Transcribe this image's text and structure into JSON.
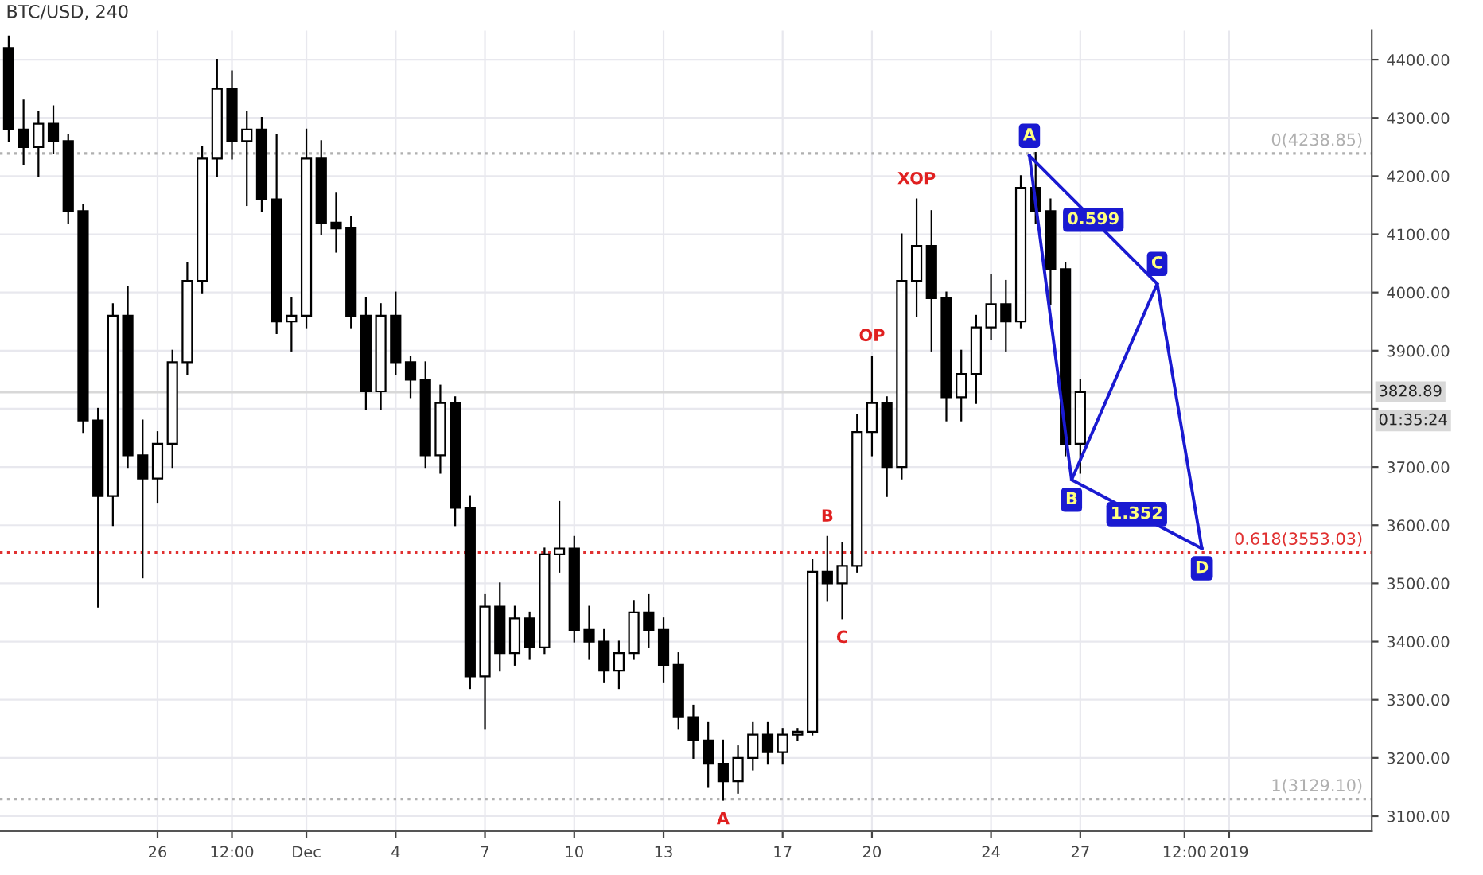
{
  "chart_data": {
    "type": "candlestick",
    "title": "BTC/USD, 240",
    "x": [
      "2018-11-21T00:00",
      "2018-11-21T12:00",
      "2018-11-22T00:00",
      "2018-11-22T12:00",
      "2018-11-23T00:00",
      "2018-11-23T12:00",
      "2018-11-24T00:00",
      "2018-11-24T12:00",
      "2018-11-25T00:00",
      "2018-11-25T12:00",
      "2018-11-26T00:00",
      "2018-11-26T12:00",
      "2018-11-27T00:00",
      "2018-11-27T12:00",
      "2018-11-28T00:00",
      "2018-11-28T12:00",
      "2018-11-29T00:00",
      "2018-11-29T12:00",
      "2018-11-30T00:00",
      "2018-11-30T12:00",
      "2018-12-01T00:00",
      "2018-12-01T12:00",
      "2018-12-02T00:00",
      "2018-12-02T12:00",
      "2018-12-03T00:00",
      "2018-12-03T12:00",
      "2018-12-04T00:00",
      "2018-12-04T12:00",
      "2018-12-05T00:00",
      "2018-12-05T12:00",
      "2018-12-06T00:00",
      "2018-12-06T12:00",
      "2018-12-07T00:00",
      "2018-12-07T12:00",
      "2018-12-08T00:00",
      "2018-12-08T12:00",
      "2018-12-09T00:00",
      "2018-12-09T12:00",
      "2018-12-10T00:00",
      "2018-12-10T12:00",
      "2018-12-11T00:00",
      "2018-12-11T12:00",
      "2018-12-12T00:00",
      "2018-12-12T12:00",
      "2018-12-13T00:00",
      "2018-12-13T12:00",
      "2018-12-14T00:00",
      "2018-12-14T12:00",
      "2018-12-15T00:00",
      "2018-12-15T12:00",
      "2018-12-16T00:00",
      "2018-12-16T12:00",
      "2018-12-17T00:00",
      "2018-12-17T12:00",
      "2018-12-18T00:00",
      "2018-12-18T12:00",
      "2018-12-19T00:00",
      "2018-12-19T12:00",
      "2018-12-20T00:00",
      "2018-12-20T12:00",
      "2018-12-21T00:00",
      "2018-12-21T12:00",
      "2018-12-22T00:00",
      "2018-12-22T12:00",
      "2018-12-23T00:00",
      "2018-12-23T12:00",
      "2018-12-24T00:00",
      "2018-12-24T12:00",
      "2018-12-25T00:00",
      "2018-12-25T12:00",
      "2018-12-26T00:00",
      "2018-12-26T12:00",
      "2018-12-27T00:00"
    ],
    "ohlc": [
      [
        4420,
        4440,
        4260,
        4280
      ],
      [
        4280,
        4330,
        4220,
        4250
      ],
      [
        4250,
        4310,
        4200,
        4290
      ],
      [
        4290,
        4320,
        4240,
        4260
      ],
      [
        4260,
        4270,
        4120,
        4140
      ],
      [
        4140,
        4150,
        3760,
        3780
      ],
      [
        3780,
        3800,
        3460,
        3650
      ],
      [
        3650,
        3980,
        3600,
        3960
      ],
      [
        3960,
        4010,
        3700,
        3720
      ],
      [
        3720,
        3780,
        3510,
        3680
      ],
      [
        3680,
        3760,
        3640,
        3740
      ],
      [
        3740,
        3900,
        3700,
        3880
      ],
      [
        3880,
        4050,
        3860,
        4020
      ],
      [
        4020,
        4250,
        4000,
        4230
      ],
      [
        4230,
        4400,
        4200,
        4350
      ],
      [
        4350,
        4380,
        4230,
        4260
      ],
      [
        4260,
        4310,
        4150,
        4280
      ],
      [
        4280,
        4300,
        4140,
        4160
      ],
      [
        4160,
        4270,
        3930,
        3950
      ],
      [
        3950,
        3990,
        3900,
        3960
      ],
      [
        3960,
        4280,
        3940,
        4230
      ],
      [
        4230,
        4260,
        4100,
        4120
      ],
      [
        4120,
        4170,
        4070,
        4110
      ],
      [
        4110,
        4130,
        3940,
        3960
      ],
      [
        3960,
        3990,
        3800,
        3830
      ],
      [
        3830,
        3980,
        3800,
        3960
      ],
      [
        3960,
        4000,
        3860,
        3880
      ],
      [
        3880,
        3890,
        3820,
        3850
      ],
      [
        3850,
        3880,
        3700,
        3720
      ],
      [
        3720,
        3840,
        3690,
        3810
      ],
      [
        3810,
        3820,
        3600,
        3630
      ],
      [
        3630,
        3650,
        3320,
        3340
      ],
      [
        3340,
        3480,
        3250,
        3460
      ],
      [
        3460,
        3500,
        3350,
        3380
      ],
      [
        3380,
        3460,
        3360,
        3440
      ],
      [
        3440,
        3450,
        3370,
        3390
      ],
      [
        3390,
        3560,
        3380,
        3550
      ],
      [
        3550,
        3640,
        3520,
        3560
      ],
      [
        3560,
        3580,
        3400,
        3420
      ],
      [
        3420,
        3460,
        3370,
        3400
      ],
      [
        3400,
        3420,
        3330,
        3350
      ],
      [
        3350,
        3400,
        3320,
        3380
      ],
      [
        3380,
        3470,
        3370,
        3450
      ],
      [
        3450,
        3480,
        3390,
        3420
      ],
      [
        3420,
        3440,
        3330,
        3360
      ],
      [
        3360,
        3380,
        3250,
        3270
      ],
      [
        3270,
        3290,
        3200,
        3230
      ],
      [
        3230,
        3260,
        3150,
        3190
      ],
      [
        3190,
        3230,
        3128,
        3160
      ],
      [
        3160,
        3220,
        3140,
        3200
      ],
      [
        3200,
        3260,
        3180,
        3240
      ],
      [
        3240,
        3260,
        3190,
        3210
      ],
      [
        3210,
        3250,
        3190,
        3240
      ],
      [
        3240,
        3250,
        3230,
        3245
      ],
      [
        3245,
        3540,
        3240,
        3520
      ],
      [
        3520,
        3580,
        3470,
        3500
      ],
      [
        3500,
        3570,
        3440,
        3530
      ],
      [
        3530,
        3790,
        3520,
        3760
      ],
      [
        3760,
        3890,
        3720,
        3810
      ],
      [
        3810,
        3820,
        3650,
        3700
      ],
      [
        3700,
        4100,
        3680,
        4020
      ],
      [
        4020,
        4160,
        3960,
        4080
      ],
      [
        4080,
        4140,
        3900,
        3990
      ],
      [
        3990,
        4000,
        3780,
        3820
      ],
      [
        3820,
        3900,
        3780,
        3860
      ],
      [
        3860,
        3960,
        3810,
        3940
      ],
      [
        3940,
        4030,
        3920,
        3980
      ],
      [
        3980,
        4020,
        3900,
        3950
      ],
      [
        3950,
        4200,
        3940,
        4180
      ],
      [
        4180,
        4240,
        4120,
        4140
      ],
      [
        4140,
        4160,
        3980,
        4040
      ],
      [
        4040,
        4050,
        3720,
        3740
      ],
      [
        3740,
        3850,
        3690,
        3828.89
      ]
    ],
    "series": [
      {
        "type": "line",
        "color": "#1a1ad1",
        "x": [
          "2018-12-25T07:00",
          "2018-12-26T17:00",
          "2018-12-29T14:00",
          "2018-12-31T02:00"
        ],
        "values": [
          4235,
          3678,
          4015,
          3560
        ],
        "value_labels": [
          "A",
          "B",
          "C",
          "D"
        ]
      },
      {
        "type": "line",
        "color": "#1a1ad1",
        "x": [
          "2018-12-25T07:00",
          "2018-12-29T14:00"
        ],
        "values": [
          4235,
          4015
        ]
      },
      {
        "type": "line",
        "color": "#1a1ad1",
        "x": [
          "2018-12-26T17:00",
          "2018-12-31T02:00"
        ],
        "values": [
          3678,
          3560
        ]
      }
    ],
    "ref_lines": [
      {
        "axis": "y",
        "value": 4238.85,
        "label": "0(4238.85)",
        "color": "#b0b0b0",
        "line_style": "dotted"
      },
      {
        "axis": "y",
        "value": 3553.03,
        "label": "0.618(3553.03)",
        "color": "#e03030",
        "line_style": "dotted"
      },
      {
        "axis": "y",
        "value": 3129.1,
        "label": "1(3129.10)",
        "color": "#b0b0b0",
        "line_style": "dotted"
      },
      {
        "axis": "y",
        "value": 3828.89,
        "label": "3828.89",
        "color": "#d8d8d8",
        "line_style": "solid"
      }
    ],
    "annotations": [
      "01:35:24",
      {
        "text": "XOP",
        "x": "2018-12-21T12:00",
        "y": 4160
      },
      {
        "text": "OP",
        "x": "2018-12-20T00:00",
        "y": 3890
      },
      {
        "text": "B",
        "x": "2018-12-18T12:00",
        "y": 3580
      },
      {
        "text": "C",
        "x": "2018-12-19T00:00",
        "y": 3440
      },
      {
        "text": "A",
        "x": "2018-12-15T00:00",
        "y": 3128
      },
      {
        "text": "0.599",
        "x": "2018-12-27T10:30",
        "y": 4125
      },
      {
        "text": "1.352",
        "x": "2018-12-28T21:30",
        "y": 3619
      }
    ],
    "xlim": [
      "2018-11-20T17:00",
      "2019-01-05T19:00"
    ],
    "ylim": [
      3074,
      4450
    ],
    "xticks": [
      {
        "value": "2018-11-26",
        "label": "26"
      },
      {
        "value": "2018-11-28T12:00",
        "label": "12:00"
      },
      {
        "value": "2018-12-01",
        "label": "Dec"
      },
      {
        "value": "2018-12-04",
        "label": "4"
      },
      {
        "value": "2018-12-07",
        "label": "7"
      },
      {
        "value": "2018-12-10",
        "label": "10"
      },
      {
        "value": "2018-12-13",
        "label": "13"
      },
      {
        "value": "2018-12-17",
        "label": "17"
      },
      {
        "value": "2018-12-20",
        "label": "20"
      },
      {
        "value": "2018-12-24",
        "label": "24"
      },
      {
        "value": "2018-12-27",
        "label": "27"
      },
      {
        "value": "2018-12-30T12:00",
        "label": "12:00"
      },
      {
        "value": "2019-01-01",
        "label": "2019"
      }
    ],
    "yticks": [
      {
        "value": 3100,
        "label": "3100.00"
      },
      {
        "value": 3200,
        "label": "3200.00"
      },
      {
        "value": 3300,
        "label": "3300.00"
      },
      {
        "value": 3400,
        "label": "3400.00"
      },
      {
        "value": 3500,
        "label": "3500.00"
      },
      {
        "value": 3600,
        "label": "3600.00"
      },
      {
        "value": 3700,
        "label": "3700.00"
      },
      {
        "value": 3800,
        "label": null
      },
      {
        "value": 3900,
        "label": "3900.00"
      },
      {
        "value": 4000,
        "label": "4000.00"
      },
      {
        "value": 4100,
        "label": "4100.00"
      },
      {
        "value": 4200,
        "label": "4200.00"
      },
      {
        "value": 4300,
        "label": "4300.00"
      },
      {
        "value": 4400,
        "label": "4400.00"
      }
    ],
    "grid": true
  }
}
